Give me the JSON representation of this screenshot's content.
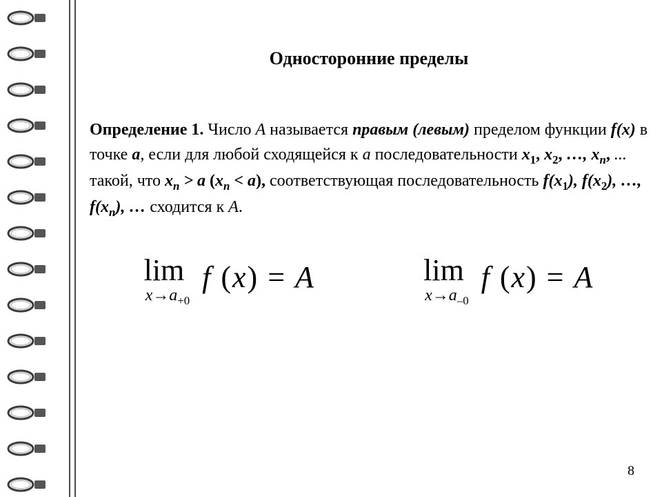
{
  "decor": {
    "ring_count": 14,
    "ring_stroke": "#3a3a3a",
    "ring_fill_dark": "#555555",
    "ring_fill_light": "#c8c8c8",
    "line_color": "#4a4a4a"
  },
  "title": "Односторонние пределы",
  "definition": {
    "label": "Определение 1.",
    "t1": " Число ",
    "A1": "A",
    "t2": " называется ",
    "right_left": "правым (левым)",
    "t3": " пределом функции ",
    "fx": "f(x)",
    "t4": " в точке ",
    "a1": "a",
    "t5": ", если для любой сходящейся к ",
    "a2": "a",
    "t6": " последовательности ",
    "x1": "x",
    "s1": "1",
    "x2": "x",
    "s2": "2",
    "xn": "x",
    "sn": "n",
    "t7": " такой, что ",
    "xn2": "x",
    "sn2": "n",
    "gt": " > ",
    "a3": "a",
    "lp": "  (",
    "xn3": "x",
    "sn3": "n",
    "lt": " < ",
    "a4": "a",
    "rp": "),",
    "t8": " соответствующая последовательность ",
    "fx1": "f(x",
    "fs1": "1",
    "fc1": "),",
    "fx2": "f(x",
    "fs2": "2",
    "fc2": "),",
    "fxn": "f(x",
    "fsn": "n",
    "fcn": "),",
    "t9": "  сходится к ",
    "A2": "A",
    "dot": ".",
    "comma": ", ",
    "ellipsis_bi": "…, ",
    "ellipsis_i": "...",
    "ellipsis_end": " …"
  },
  "formulas": {
    "lim": "lim",
    "arrow": "→",
    "x": "x",
    "a": "a",
    "plus0": "+0",
    "minus0": "–0",
    "f": "f",
    "open": " (",
    "xvar": "x",
    "close": ") ",
    "eq": "= ",
    "A": "A"
  },
  "page_number": "8"
}
